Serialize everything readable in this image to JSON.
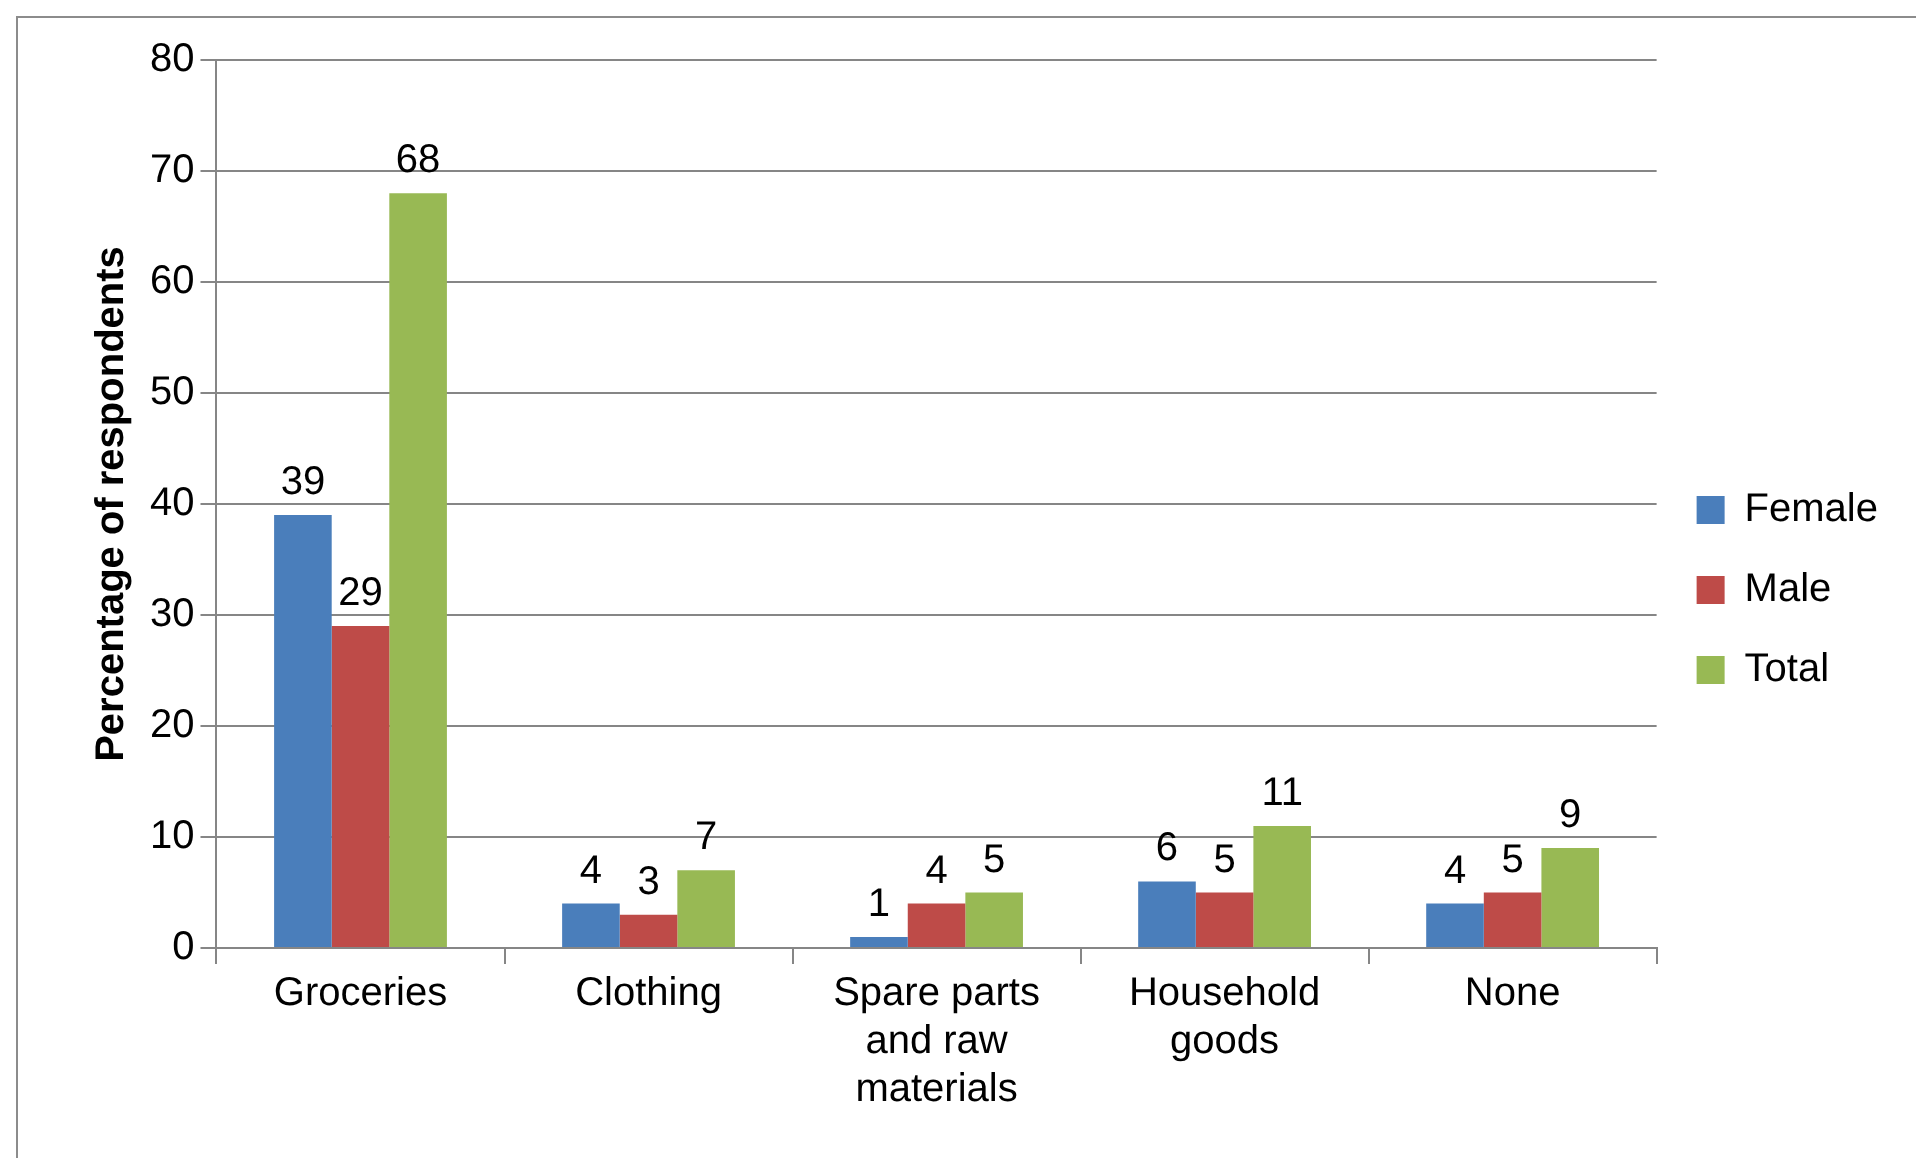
{
  "chart_data": {
    "type": "bar",
    "ylabel": "Percentage of respondents",
    "categories": [
      "Groceries",
      "Clothing",
      "Spare parts and raw materials",
      "Household goods",
      "None"
    ],
    "series": [
      {
        "name": "Female",
        "color": "#4a7ebb",
        "values": [
          39,
          4,
          1,
          6,
          4
        ]
      },
      {
        "name": "Male",
        "color": "#be4b48",
        "values": [
          29,
          3,
          4,
          5,
          5
        ]
      },
      {
        "name": "Total",
        "color": "#98b954",
        "values": [
          68,
          7,
          5,
          11,
          9
        ]
      }
    ],
    "ylim": [
      0,
      80
    ],
    "yticks": [
      0,
      10,
      20,
      30,
      40,
      50,
      60,
      70,
      80
    ],
    "grid": "y",
    "legend": "right",
    "data_labels": true
  }
}
